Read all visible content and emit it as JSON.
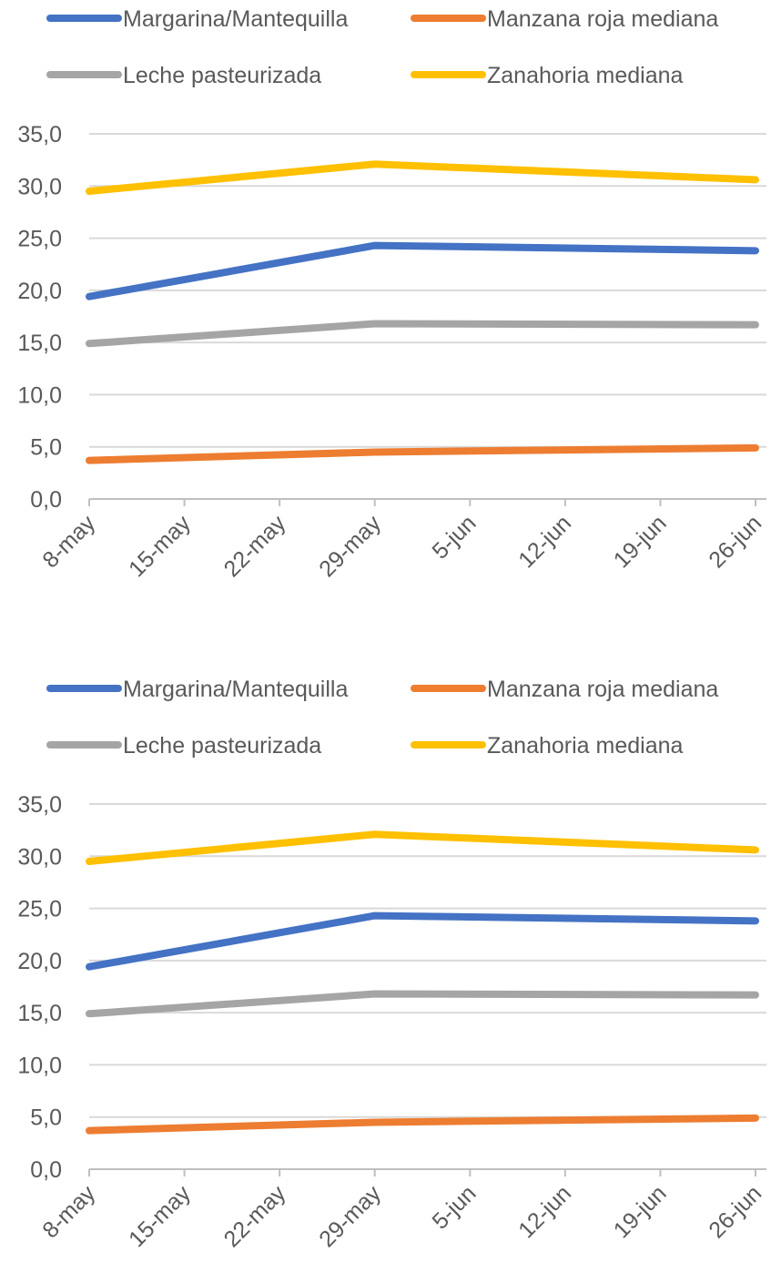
{
  "chart_data": [
    {
      "type": "line",
      "xticks": [
        "8-may",
        "15-may",
        "22-may",
        "29-may",
        "5-jun",
        "12-jun",
        "19-jun",
        "26-jun"
      ],
      "x": [
        "8-may",
        "29-may",
        "26-jun"
      ],
      "series": [
        {
          "name": "Margarina/Mantequilla",
          "color": "#4472c4",
          "values": [
            19.4,
            24.3,
            23.8
          ]
        },
        {
          "name": "Manzana roja mediana",
          "color": "#ed7d31",
          "values": [
            3.7,
            4.5,
            4.9
          ]
        },
        {
          "name": "Leche pasteurizada",
          "color": "#a5a5a5",
          "values": [
            14.9,
            16.8,
            16.7
          ]
        },
        {
          "name": "Zanahoria mediana",
          "color": "#ffc000",
          "values": [
            29.5,
            32.1,
            30.6
          ]
        }
      ],
      "ylim": [
        0,
        35
      ],
      "yticks": [
        {
          "value": 0,
          "label": "0,0"
        },
        {
          "value": 5,
          "label": "5,0"
        },
        {
          "value": 10,
          "label": "10,0"
        },
        {
          "value": 15,
          "label": "15,0"
        },
        {
          "value": 20,
          "label": "20,0"
        },
        {
          "value": 25,
          "label": "25,0"
        },
        {
          "value": 30,
          "label": "30,0"
        },
        {
          "value": 35,
          "label": "35,0"
        }
      ],
      "grid": true,
      "legend": "top"
    },
    {
      "type": "line",
      "xticks": [
        "8-may",
        "15-may",
        "22-may",
        "29-may",
        "5-jun",
        "12-jun",
        "19-jun",
        "26-jun"
      ],
      "x": [
        "8-may",
        "29-may",
        "26-jun"
      ],
      "series": [
        {
          "name": "Margarina/Mantequilla",
          "color": "#4472c4",
          "values": [
            19.4,
            24.3,
            23.8
          ]
        },
        {
          "name": "Manzana roja mediana",
          "color": "#ed7d31",
          "values": [
            3.7,
            4.5,
            4.9
          ]
        },
        {
          "name": "Leche pasteurizada",
          "color": "#a5a5a5",
          "values": [
            14.9,
            16.8,
            16.7
          ]
        },
        {
          "name": "Zanahoria mediana",
          "color": "#ffc000",
          "values": [
            29.5,
            32.1,
            30.6
          ]
        }
      ],
      "ylim": [
        0,
        35
      ],
      "yticks": [
        {
          "value": 0,
          "label": "0,0"
        },
        {
          "value": 5,
          "label": "5,0"
        },
        {
          "value": 10,
          "label": "10,0"
        },
        {
          "value": 15,
          "label": "15,0"
        },
        {
          "value": 20,
          "label": "20,0"
        },
        {
          "value": 25,
          "label": "25,0"
        },
        {
          "value": 30,
          "label": "30,0"
        },
        {
          "value": 35,
          "label": "35,0"
        }
      ],
      "grid": true,
      "legend": "top"
    }
  ]
}
